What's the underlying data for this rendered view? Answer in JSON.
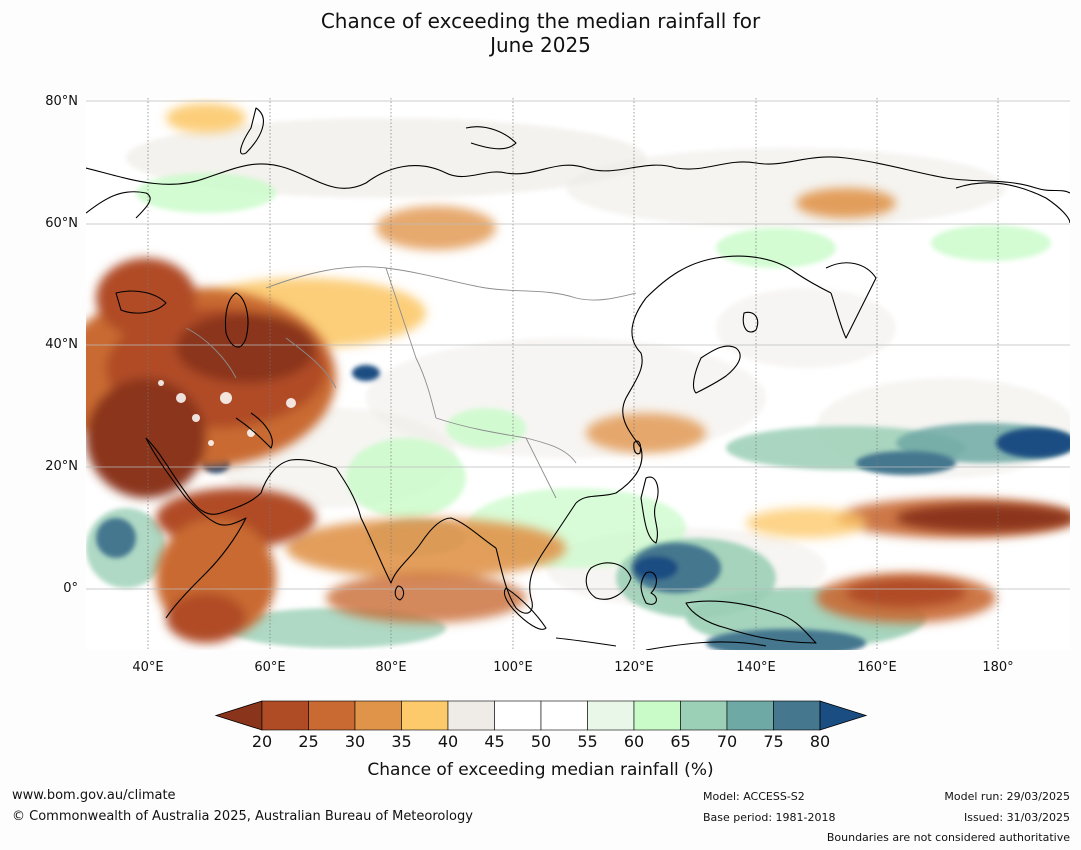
{
  "title_line1": "Chance of exceeding the median rainfall for",
  "title_line2": "June 2025",
  "lat_labels": [
    "80°N",
    "60°N",
    "40°N",
    "20°N",
    "0°"
  ],
  "lon_labels": [
    "40°E",
    "60°E",
    "80°E",
    "100°E",
    "120°E",
    "140°E",
    "160°E",
    "180°"
  ],
  "colorbar": {
    "ticks": [
      "20",
      "25",
      "30",
      "35",
      "40",
      "45",
      "50",
      "55",
      "60",
      "65",
      "70",
      "75",
      "80"
    ],
    "colors": [
      "#8b341c",
      "#b04c25",
      "#c96a33",
      "#e0944a",
      "#fcc96b",
      "#efece7",
      "#ffffff",
      "#ffffff",
      "#e9f7e9",
      "#c8fbc8",
      "#9bcfb6",
      "#6fa9a5",
      "#45778f",
      "#1a4e82"
    ],
    "label": "Chance of exceeding median rainfall (%)"
  },
  "footer": {
    "website": "www.bom.gov.au/climate",
    "copyright": "© Commonwealth of Australia 2025, Australian Bureau of Meteorology",
    "model": "Model: ACCESS-S2",
    "base_period": "Base period: 1981-2018",
    "model_run": "Model run: 29/03/2025",
    "issued": "Issued: 31/03/2025",
    "disclaimer": "Boundaries are not considered authoritative"
  }
}
